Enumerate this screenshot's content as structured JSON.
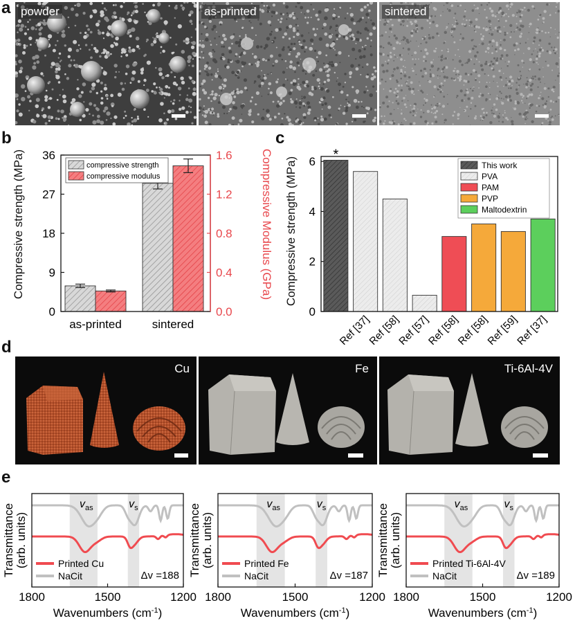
{
  "panel_a": {
    "letter": "a",
    "images": [
      {
        "label": "powder"
      },
      {
        "label": "as-printed"
      },
      {
        "label": "sintered"
      }
    ]
  },
  "panel_b": {
    "letter": "b",
    "chart_data": {
      "type": "bar",
      "categories": [
        "as-printed",
        "sintered"
      ],
      "ylabel": "Compressive  strength (MPa)",
      "y2label": "Compressive Modulus (GPa)",
      "ylim": [
        0,
        36
      ],
      "y2lim": [
        0,
        1.6
      ],
      "yticks": [
        "0",
        "9",
        "18",
        "27",
        "36"
      ],
      "y2ticks": [
        "0.0",
        "0.4",
        "0.8",
        "1.2",
        "1.6"
      ],
      "legend_placement": "top-left",
      "series": [
        {
          "name": "compressive strength",
          "axis": "left",
          "values": [
            5.9,
            29.5
          ],
          "errors": [
            0.4,
            1.3
          ],
          "color": "#d3d3d3"
        },
        {
          "name": "compressive modulus",
          "axis": "right",
          "values": [
            0.21,
            1.49
          ],
          "errors": [
            0.01,
            0.07
          ],
          "color": "#ef5a5a"
        }
      ],
      "accent_color": "#e8474c"
    }
  },
  "panel_c": {
    "letter": "c",
    "chart_data": {
      "type": "bar",
      "categories": [
        "",
        "Ref [37]",
        "Ref [58]",
        "Ref [57]",
        "Ref [58]",
        "Ref [58]",
        "Ref [59]",
        "Ref [37]"
      ],
      "values": [
        6.05,
        5.6,
        4.5,
        0.65,
        3.0,
        3.5,
        3.2,
        3.7
      ],
      "groups": [
        "This work",
        "PVA",
        "PVA",
        "PVA",
        "PAM",
        "PVP",
        "PVP",
        "Maltodextrin"
      ],
      "ylabel": "Compressive strength (MPa)",
      "ylim": [
        0,
        6.2
      ],
      "yticks": [
        "0",
        "2",
        "4",
        "6"
      ],
      "annotation": "*",
      "legend_placement": "top-right",
      "legend": [
        {
          "name": "This work",
          "color": "#555555"
        },
        {
          "name": "PVA",
          "color": "#e6e6e6"
        },
        {
          "name": "PAM",
          "color": "#ef4d55"
        },
        {
          "name": "PVP",
          "color": "#f5a93a"
        },
        {
          "name": "Maltodextrin",
          "color": "#5ccf5c"
        }
      ]
    }
  },
  "panel_d": {
    "letter": "d",
    "photos": [
      {
        "label": "Cu"
      },
      {
        "label": "Fe"
      },
      {
        "label": "Ti-6Al-4V"
      }
    ]
  },
  "panel_e": {
    "letter": "e",
    "ylabel_line1": "Transmittance",
    "ylabel_line2": "(arb. units)",
    "xlabel": "Wavenumbers (cm",
    "xlabel_sup": "-1",
    "xlabel_end": ")",
    "xlim": [
      1800,
      1200
    ],
    "xticks": [
      "1800",
      "1500",
      "1200"
    ],
    "band_as": "v",
    "band_as_sub": "as",
    "band_s": "v",
    "band_s_sub": "s",
    "delta_prefix": "Δv =",
    "ref_legend": "NaCit",
    "ref_color": "#c0c0c0",
    "printed_color": "#f04b50",
    "plots": [
      {
        "legend": "Printed Cu",
        "delta": "188"
      },
      {
        "legend": "Printed Fe",
        "delta": "187"
      },
      {
        "legend": "Printed Ti-6Al-4V",
        "delta": "189"
      }
    ]
  }
}
